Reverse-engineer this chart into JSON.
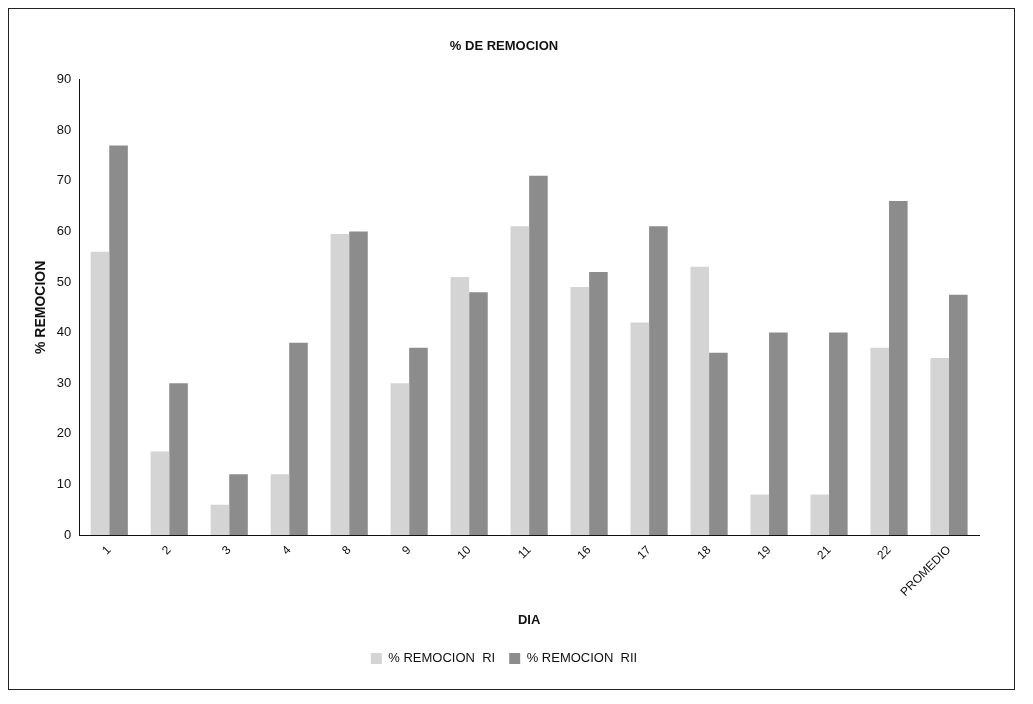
{
  "chart_data": {
    "type": "bar",
    "title": "% DE REMOCION",
    "xlabel": "DIA",
    "ylabel": "% REMOCION",
    "categories": [
      "1",
      "2",
      "3",
      "4",
      "8",
      "9",
      "10",
      "11",
      "16",
      "17",
      "18",
      "19",
      "21",
      "22",
      "PROMEDIO"
    ],
    "series": [
      {
        "name": "% REMOCION  RI",
        "color": "#d4d4d4",
        "values": [
          56,
          16.5,
          6,
          12,
          59.5,
          30,
          51,
          61,
          49,
          42,
          53,
          8,
          8,
          37,
          35
        ]
      },
      {
        "name": "% REMOCION  RII",
        "color": "#8c8c8c",
        "values": [
          77,
          30,
          12,
          38,
          60,
          37,
          48,
          71,
          52,
          61,
          36,
          40,
          40,
          66,
          47.5
        ]
      }
    ],
    "ylim": [
      0,
      90
    ],
    "yticks": [
      0,
      10,
      20,
      30,
      40,
      50,
      60,
      70,
      80,
      90
    ],
    "grid": false,
    "legend": "bottom"
  }
}
